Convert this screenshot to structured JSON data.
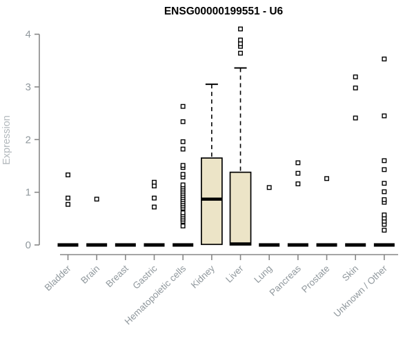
{
  "chart_data": {
    "type": "boxplot",
    "title": "ENSG00000199551 - U6",
    "ylabel": "Expression",
    "xlabel": "",
    "ylim": [
      0,
      4
    ],
    "yticks": [
      0,
      1,
      2,
      3,
      4
    ],
    "grid": false,
    "legend": "none",
    "colors": {
      "background": "#ffffff",
      "box_fill": "#ece4c7",
      "box_border": "#000000",
      "median": "#000000",
      "whisker": "#000000",
      "outlier_stroke": "#000000",
      "outlier_fill": "#ffffff",
      "axis_line": "#878787",
      "tick_label": "#90989d",
      "axis_label": "#b2b8bc",
      "title": "#000000"
    },
    "categories": [
      "Bladder",
      "Brain",
      "Breast",
      "Gastric",
      "Hematopoietic cells",
      "Kidney",
      "Liver",
      "Lung",
      "Pancreas",
      "Prostate",
      "Skin",
      "Unknown / Other"
    ],
    "series": [
      {
        "category": "Bladder",
        "q1": 0,
        "median": 0,
        "q3": 0,
        "whisker_low": 0,
        "whisker_high": 0,
        "outliers": [
          0.77,
          0.89,
          1.33
        ]
      },
      {
        "category": "Brain",
        "q1": 0,
        "median": 0,
        "q3": 0,
        "whisker_low": 0,
        "whisker_high": 0,
        "outliers": [
          0.87
        ]
      },
      {
        "category": "Breast",
        "q1": 0,
        "median": 0,
        "q3": 0,
        "whisker_low": 0,
        "whisker_high": 0,
        "outliers": []
      },
      {
        "category": "Gastric",
        "q1": 0,
        "median": 0,
        "q3": 0,
        "whisker_low": 0,
        "whisker_high": 0,
        "outliers": [
          0.72,
          0.89,
          1.12,
          1.19
        ]
      },
      {
        "category": "Hematopoietic cells",
        "q1": 0,
        "median": 0,
        "q3": 0,
        "whisker_low": 0,
        "whisker_high": 0,
        "outliers": [
          0.36,
          0.45,
          0.49,
          0.53,
          0.57,
          0.61,
          0.7,
          0.74,
          0.78,
          0.82,
          0.86,
          0.9,
          0.94,
          0.98,
          1.02,
          1.06,
          1.1,
          1.14,
          1.29,
          1.34,
          1.47,
          1.51,
          1.82,
          1.96,
          2.34,
          2.63
        ]
      },
      {
        "category": "Kidney",
        "q1": 0.01,
        "median": 0.87,
        "q3": 1.65,
        "whisker_low": 0.01,
        "whisker_high": 3.05,
        "outliers": []
      },
      {
        "category": "Liver",
        "q1": 0,
        "median": 0.02,
        "q3": 1.38,
        "whisker_low": 0,
        "whisker_high": 3.36,
        "outliers": [
          3.64,
          3.77,
          3.82,
          3.89,
          4.1
        ]
      },
      {
        "category": "Lung",
        "q1": 0,
        "median": 0,
        "q3": 0,
        "whisker_low": 0,
        "whisker_high": 0,
        "outliers": [
          1.09
        ]
      },
      {
        "category": "Pancreas",
        "q1": 0,
        "median": 0,
        "q3": 0,
        "whisker_low": 0,
        "whisker_high": 0,
        "outliers": [
          1.16,
          1.36,
          1.56
        ]
      },
      {
        "category": "Prostate",
        "q1": 0,
        "median": 0,
        "q3": 0,
        "whisker_low": 0,
        "whisker_high": 0,
        "outliers": [
          1.26
        ]
      },
      {
        "category": "Skin",
        "q1": 0,
        "median": 0,
        "q3": 0,
        "whisker_low": 0,
        "whisker_high": 0,
        "outliers": [
          2.41,
          2.98,
          3.19
        ]
      },
      {
        "category": "Unknown / Other",
        "q1": 0,
        "median": 0,
        "q3": 0,
        "whisker_low": 0,
        "whisker_high": 0,
        "outliers": [
          0.28,
          0.39,
          0.45,
          0.51,
          0.57,
          0.81,
          0.86,
          1.01,
          1.17,
          1.43,
          1.6,
          2.45,
          3.53
        ]
      }
    ]
  }
}
